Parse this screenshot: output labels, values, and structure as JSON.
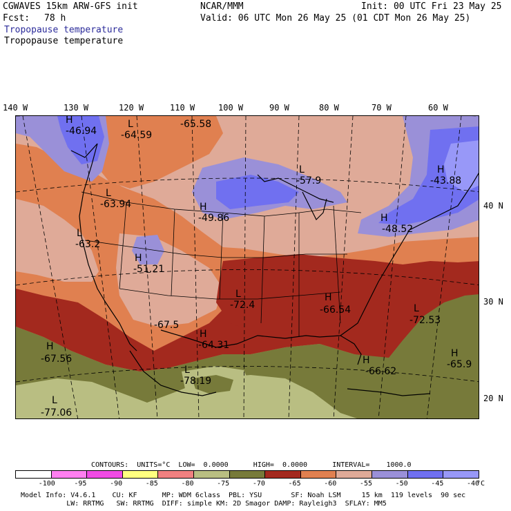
{
  "header": {
    "model_name": "CGWAVES 15km ARW-GFS init",
    "fcst_label": "Fcst:",
    "fcst_value": "78 h",
    "center": "NCAR/MMM",
    "init": "Init: 00 UTC Fri 23 May 25",
    "valid": "Valid: 06 UTC Mon 26 May 25 (01 CDT Mon 26 May 25)",
    "field_title_1": "Tropopause temperature",
    "field_title_2": "Tropopause temperature"
  },
  "longitude_labels": [
    "140 W",
    "130 W",
    "120 W",
    "110 W",
    "100 W",
    "90 W",
    "80 W",
    "70 W",
    "60 W"
  ],
  "latitude_labels": [
    "40 N",
    "30 N",
    "20 N"
  ],
  "extrema": [
    {
      "type": "H",
      "value": "-46.94"
    },
    {
      "type": "L",
      "value": "-64.59"
    },
    {
      "type": "L",
      "value": "-65.58"
    },
    {
      "type": "L",
      "value": "-63.94"
    },
    {
      "type": "H",
      "value": "-49.86"
    },
    {
      "type": "L",
      "value": "-57.9"
    },
    {
      "type": "H",
      "value": "-43.88"
    },
    {
      "type": "H",
      "value": "-48.52"
    },
    {
      "type": "L",
      "value": "-63.2"
    },
    {
      "type": "H",
      "value": "-51.21"
    },
    {
      "type": "L",
      "value": "-72.4"
    },
    {
      "type": "H",
      "value": "-66.54"
    },
    {
      "type": "L",
      "value": "-72.53"
    },
    {
      "type": "L",
      "value": "-67.5"
    },
    {
      "type": "H",
      "value": "-64.31"
    },
    {
      "type": "H",
      "value": "-67.56"
    },
    {
      "type": "H",
      "value": "-66.62"
    },
    {
      "type": "H",
      "value": "-65.9"
    },
    {
      "type": "L",
      "value": "-78.19"
    },
    {
      "type": "L",
      "value": "-77.06"
    }
  ],
  "contour_info": "CONTOURS:  UNITS=°C  LOW=  0.0000      HIGH=  0.0000      INTERVAL=    1000.0",
  "colorbar": {
    "colors": [
      "#ffffff",
      "#ff7ff0",
      "#f04be4",
      "#ffff80",
      "#f08080",
      "#b9be82",
      "#777a3a",
      "#a3291e",
      "#e08050",
      "#dfaa98",
      "#9a90d8",
      "#7070f0",
      "#9898f8"
    ],
    "ticks": [
      "-100",
      "-95",
      "-90",
      "-85",
      "-80",
      "-75",
      "-70",
      "-65",
      "-60",
      "-55",
      "-50",
      "-45",
      "-40"
    ],
    "unit": "°C"
  },
  "footer": {
    "line1": "Model Info: V4.6.1    CU: KF      MP: WDM 6class  PBL: YSU       SF: Noah LSM     15 km  119 levels  90 sec",
    "line2": "           LW: RRTMG   SW: RRTMG  DIFF: simple KM: 2D Smagor DAMP: Rayleigh3  SFLAY: MM5"
  }
}
